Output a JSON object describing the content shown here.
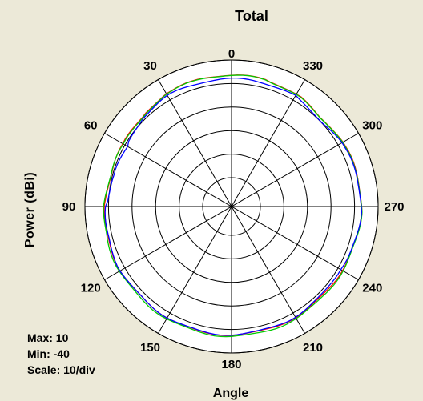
{
  "chart_data": {
    "type": "polar",
    "title": "Total",
    "xlabel": "Angle",
    "ylabel": "Power  (dBi)",
    "rlim": [
      -40,
      10
    ],
    "r_ticks": [
      -40,
      -30,
      -20,
      -10,
      0,
      10
    ],
    "angle_direction": "counterclockwise",
    "zero_location": "top",
    "angle_tick_labels": [
      "0",
      "30",
      "60",
      "90",
      "120",
      "150",
      "180",
      "210",
      "240",
      "270",
      "300",
      "330"
    ],
    "grid": true,
    "colors": {
      "background": "#ece9d8",
      "plot_bg": "#ffffff",
      "grid": "#000000"
    },
    "series": [
      {
        "color": "#ff0000",
        "theta": [
          0,
          15,
          30,
          45,
          60,
          75,
          90,
          105,
          120,
          135,
          150,
          165,
          180,
          195,
          210,
          225,
          240,
          255,
          270,
          285,
          300,
          315,
          330,
          345
        ],
        "r": [
          3.7,
          3.5,
          3.0,
          1.6,
          0.8,
          0.8,
          1.5,
          2.0,
          2.2,
          2.0,
          2.2,
          2.4,
          2.3,
          2.1,
          2.0,
          1.8,
          1.9,
          2.4,
          3.0,
          2.8,
          2.2,
          1.4,
          2.8,
          3.4
        ]
      },
      {
        "color": "#00cc00",
        "theta": [
          0,
          15,
          30,
          45,
          60,
          75,
          90,
          105,
          120,
          135,
          150,
          165,
          180,
          195,
          210,
          225,
          240,
          255,
          270,
          285,
          300,
          315,
          330,
          345
        ],
        "r": [
          3.6,
          3.4,
          2.8,
          1.4,
          0.6,
          0.9,
          1.8,
          2.5,
          2.6,
          2.6,
          2.8,
          2.8,
          2.9,
          2.8,
          2.6,
          2.3,
          2.2,
          2.5,
          3.0,
          2.7,
          2.0,
          1.3,
          2.6,
          3.3
        ]
      },
      {
        "color": "#0000ff",
        "theta": [
          0,
          15,
          30,
          45,
          60,
          75,
          90,
          105,
          120,
          135,
          150,
          165,
          180,
          195,
          210,
          225,
          240,
          255,
          270,
          285,
          300,
          315,
          330,
          345
        ],
        "r": [
          2.0,
          2.0,
          2.0,
          1.0,
          -1.0,
          -0.8,
          1.0,
          1.8,
          2.2,
          2.0,
          2.2,
          2.3,
          2.2,
          1.9,
          1.8,
          1.4,
          1.0,
          2.3,
          2.8,
          2.6,
          1.6,
          0.2,
          2.0,
          2.0
        ]
      }
    ],
    "stats": {
      "max": "Max: 10",
      "min": "Min: -40",
      "scale": "Scale: 10/div"
    }
  }
}
